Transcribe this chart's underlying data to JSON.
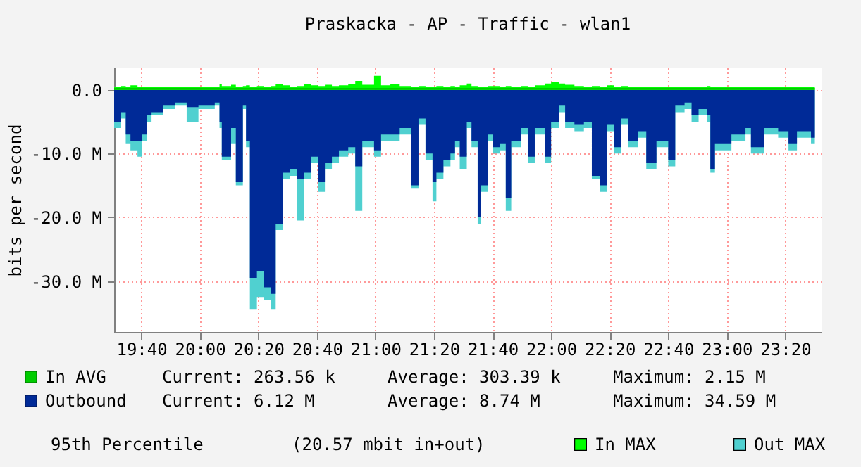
{
  "chart_data": {
    "type": "area",
    "title": "Praskacka - AP - Traffic - wlan1",
    "ylabel": "bits per second",
    "x": [
      19.512,
      19.552,
      19.578,
      19.605,
      19.645,
      19.672,
      19.698,
      19.725,
      19.792,
      19.858,
      19.925,
      19.992,
      20.085,
      20.112,
      20.125,
      20.178,
      20.205,
      20.245,
      20.263,
      20.285,
      20.325,
      20.365,
      20.405,
      20.432,
      20.472,
      20.512,
      20.552,
      20.592,
      20.632,
      20.672,
      20.712,
      20.752,
      20.792,
      20.845,
      20.885,
      20.925,
      20.992,
      21.032,
      21.085,
      21.138,
      21.205,
      21.245,
      21.285,
      21.325,
      21.347,
      21.387,
      21.427,
      21.453,
      21.48,
      21.52,
      21.547,
      21.582,
      21.6,
      21.64,
      21.667,
      21.707,
      21.742,
      21.773,
      21.827,
      21.867,
      21.907,
      21.965,
      22.0,
      22.045,
      22.08,
      22.133,
      22.187,
      22.232,
      22.28,
      22.32,
      22.36,
      22.4,
      22.44,
      22.493,
      22.542,
      22.6,
      22.667,
      22.707,
      22.76,
      22.8,
      22.84,
      22.888,
      22.907,
      22.933,
      23.027,
      23.107,
      23.138,
      23.213,
      23.293,
      23.352,
      23.4,
      23.48,
      23.502
    ],
    "series": [
      {
        "name": "Out MAX",
        "color": "#50d0d0",
        "values": [
          -6,
          -4.5,
          -8.5,
          -9.5,
          -10.5,
          -8,
          -5,
          -4,
          -3,
          -2.5,
          -5,
          -3,
          -2.5,
          -6,
          -11,
          -8.5,
          -15,
          -3,
          -9,
          -34.5,
          -32.5,
          -33,
          -34.5,
          -22,
          -14,
          -13.5,
          -20.5,
          -14,
          -11.5,
          -16,
          -12.5,
          -11.5,
          -10.5,
          -10,
          -19,
          -9,
          -10.5,
          -8,
          -8,
          -7,
          -15.5,
          -5.5,
          -11,
          -17.5,
          -14,
          -12,
          -11,
          -9,
          -12.5,
          -6,
          -9,
          -21,
          -16,
          -8,
          -10,
          -9.5,
          -19,
          -9,
          -7,
          -11.5,
          -7,
          -11.5,
          -6,
          -3.5,
          -6,
          -6.5,
          -6,
          -14,
          -16,
          -6.5,
          -10,
          -5.5,
          -9,
          -7.5,
          -12.5,
          -9,
          -12,
          -3.5,
          -3,
          -5,
          -4,
          -5,
          -13,
          -9.5,
          -8,
          -7,
          -10,
          -7,
          -7.5,
          -9.5,
          -7.5,
          -8.5,
          -7.5
        ]
      },
      {
        "name": "Outbound",
        "color": "#002a97",
        "values": [
          -5,
          -3.5,
          -7,
          -8,
          -8,
          -7,
          -4,
          -3.5,
          -2.5,
          -2,
          -2.7,
          -2.5,
          -2,
          -5,
          -10.5,
          -6,
          -14.5,
          -2.5,
          -8,
          -29.5,
          -28.5,
          -31,
          -32,
          -21,
          -13,
          -12.5,
          -14,
          -13,
          -10.5,
          -14.5,
          -11.5,
          -10.5,
          -9.5,
          -9,
          -12,
          -8,
          -9.5,
          -7,
          -7,
          -6,
          -15,
          -4.5,
          -10,
          -14.5,
          -13,
          -11,
          -10,
          -8,
          -10.5,
          -5,
          -8,
          -20,
          -15,
          -7,
          -9,
          -8.5,
          -17,
          -8,
          -6,
          -10.5,
          -6,
          -10.5,
          -5,
          -2.5,
          -5,
          -5.5,
          -5,
          -13.5,
          -15,
          -5.5,
          -9,
          -4.5,
          -8,
          -6.5,
          -11.5,
          -8,
          -11,
          -2.5,
          -2,
          -4,
          -3,
          -4,
          -12.5,
          -8.5,
          -7,
          -6,
          -9,
          -6,
          -6.5,
          -8.5,
          -6.5,
          -7.5,
          -6.5
        ]
      },
      {
        "name": "In MAX",
        "color": "#00ff00",
        "values": [
          0.5,
          0.6,
          0.5,
          0.7,
          0.5,
          0.4,
          0.4,
          0.5,
          0.4,
          0.5,
          0.4,
          0.5,
          0.5,
          0.9,
          0.6,
          0.8,
          0.5,
          0.6,
          0.7,
          0.5,
          0.6,
          0.5,
          0.6,
          0.9,
          0.7,
          0.5,
          0.6,
          0.9,
          0.7,
          0.6,
          0.8,
          0.6,
          0.7,
          0.9,
          1.4,
          0.8,
          2.2,
          0.7,
          0.9,
          0.6,
          0.5,
          0.6,
          0.5,
          0.5,
          0.6,
          0.5,
          0.6,
          0.5,
          0.7,
          1.0,
          0.6,
          0.5,
          0.5,
          0.6,
          0.6,
          0.5,
          0.6,
          0.5,
          0.6,
          0.5,
          0.7,
          1.0,
          1.3,
          1.0,
          0.8,
          0.6,
          0.5,
          0.6,
          0.5,
          0.7,
          0.5,
          0.6,
          0.5,
          0.5,
          0.5,
          0.4,
          0.5,
          0.4,
          0.5,
          0.4,
          0.4,
          0.6,
          0.5,
          0.5,
          0.4,
          0.4,
          0.5,
          0.5,
          0.4,
          0.5,
          0.4,
          0.4,
          0.4
        ]
      },
      {
        "name": "In AVG",
        "color": "#00cc00",
        "values": [
          0.3,
          0.3,
          0.3,
          0.3,
          0.3,
          0.3,
          0.3,
          0.3,
          0.3,
          0.3,
          0.3,
          0.3,
          0.3,
          0.3,
          0.3,
          0.3,
          0.3,
          0.3,
          0.3,
          0.3,
          0.3,
          0.3,
          0.3,
          0.3,
          0.3,
          0.3,
          0.3,
          0.3,
          0.3,
          0.3,
          0.3,
          0.3,
          0.3,
          0.3,
          0.3,
          0.3,
          0.3,
          0.3,
          0.3,
          0.3,
          0.3,
          0.3,
          0.3,
          0.3,
          0.3,
          0.3,
          0.3,
          0.3,
          0.3,
          0.3,
          0.3,
          0.3,
          0.3,
          0.3,
          0.3,
          0.3,
          0.3,
          0.3,
          0.3,
          0.3,
          0.3,
          0.3,
          0.3,
          0.3,
          0.3,
          0.3,
          0.3,
          0.3,
          0.3,
          0.3,
          0.3,
          0.3,
          0.3,
          0.3,
          0.3,
          0.3,
          0.3,
          0.3,
          0.3,
          0.3,
          0.3,
          0.3,
          0.3,
          0.3,
          0.3,
          0.3,
          0.3,
          0.3,
          0.3,
          0.3,
          0.3,
          0.3,
          0.3
        ]
      }
    ],
    "xlim": [
      19.512,
      23.54
    ],
    "xticks": [
      {
        "value": 19.6667,
        "label": "19:40"
      },
      {
        "value": 20.0,
        "label": "20:00"
      },
      {
        "value": 20.3333,
        "label": "20:20"
      },
      {
        "value": 20.6667,
        "label": "20:40"
      },
      {
        "value": 21.0,
        "label": "21:00"
      },
      {
        "value": 21.3333,
        "label": "21:20"
      },
      {
        "value": 21.6667,
        "label": "21:40"
      },
      {
        "value": 22.0,
        "label": "22:00"
      },
      {
        "value": 22.3333,
        "label": "22:20"
      },
      {
        "value": 22.6667,
        "label": "22:40"
      },
      {
        "value": 23.0,
        "label": "23:00"
      },
      {
        "value": 23.3333,
        "label": "23:20"
      }
    ],
    "ylim": [
      -38,
      3.5
    ],
    "yticks": [
      {
        "value": 0,
        "label": "0.0"
      },
      {
        "value": -10,
        "label": "-10.0 M"
      },
      {
        "value": -20,
        "label": "-20.0 M"
      },
      {
        "value": -30,
        "label": "-30.0 M"
      }
    ],
    "grid": true,
    "legend": "bottom",
    "annotations": [
      "Current:  263.56 k",
      "Average:  303.39 k",
      "Maximum:    2.15 M",
      "Current:    6.12 M",
      "Average:    8.74 M",
      "Maximum:   34.59 M",
      "95th Percentile",
      "(20.57 mbit in+out)"
    ]
  }
}
